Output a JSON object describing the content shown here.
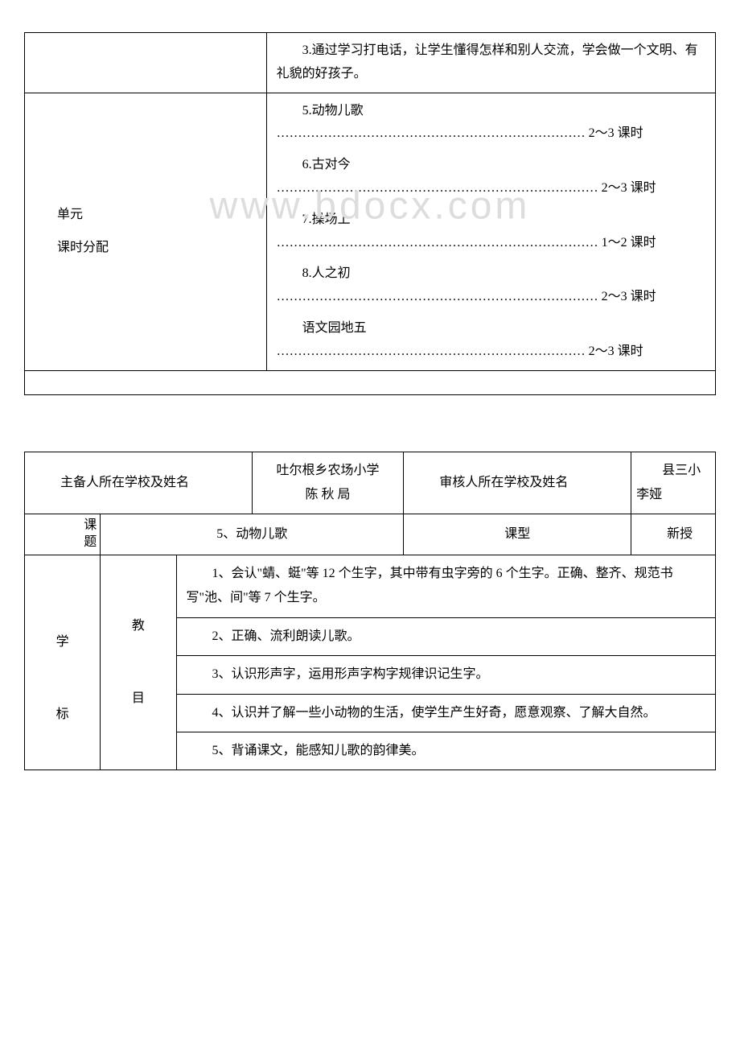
{
  "table1": {
    "row1_col2": "　　3.通过学习打电话，让学生懂得怎样和别人交流，学会做一个文明、有礼貌的好孩子。",
    "unit_label": "单元",
    "period_label": "课时分配",
    "items": [
      {
        "title": "　　5.动物儿歌",
        "dots": "……………………………………………………………… 2～3 课时"
      },
      {
        "title": "　　6.古对今",
        "dots": "………………………………………………………………… 2～3 课时"
      },
      {
        "title": "　　7.操场上",
        "dots": "………………………………………………………………… 1～2 课时"
      },
      {
        "title": "　　8.人之初",
        "dots": "………………………………………………………………… 2～3 课时"
      },
      {
        "title": "　　语文园地五",
        "dots": "……………………………………………………………… 2～3 课时"
      }
    ]
  },
  "watermark": "www.bdocx.com",
  "table2": {
    "r1": {
      "c1": "　　主备人所在学校及姓名",
      "c2_line1": "吐尔根乡农场小学",
      "c2_line2": "陈 秋 局",
      "c3": "　　审核人所在学校及姓名",
      "c4": "　　县三小李娅"
    },
    "r2": {
      "label": "课题",
      "title": "5、动物儿歌",
      "type_label": "课型",
      "type_value": "　　新授"
    },
    "goals": {
      "label_top": "教",
      "label_left": "学",
      "label_bottom": "目",
      "label_left2": "标",
      "g1": "　　1、会认\"蜻、蜓\"等 12 个生字，其中带有虫字旁的 6 个生字。正确、整齐、规范书写\"池、间\"等 7 个生字。",
      "g2": "　　2、正确、流利朗读儿歌。",
      "g3": "　　3、认识形声字，运用形声字构字规律识记生字。",
      "g4": "　　4、认识并了解一些小动物的生活，使学生产生好奇，愿意观察、了解大自然。",
      "g5": "　　5、背诵课文，能感知儿歌的韵律美。"
    }
  }
}
